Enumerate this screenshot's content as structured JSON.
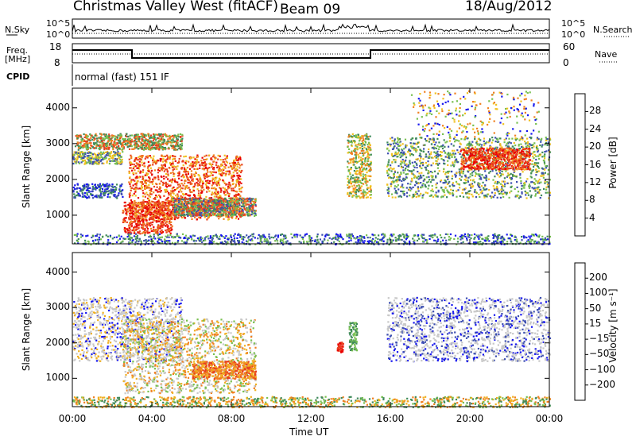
{
  "header": {
    "title": "Christmas Valley West (fitACF)",
    "beam": "Beam 09",
    "date": "18/Aug/2012"
  },
  "strips": {
    "nsky_label": "N.Sky",
    "nsearch_label": "N.Search",
    "freq_label_1": "Freq.",
    "freq_label_2": "[MHz]",
    "nave_label": "Nave",
    "cpid_label": "CPID",
    "cpid_text": "normal (fast) 151 IF",
    "noise_ticks": [
      "10^5",
      "10^0"
    ],
    "freq_ticks": [
      "18",
      "8"
    ],
    "nave_ticks": [
      "60",
      "0"
    ]
  },
  "xaxis": {
    "label": "Time UT",
    "ticks": [
      "00:00",
      "04:00",
      "08:00",
      "12:00",
      "16:00",
      "20:00",
      "00:00"
    ]
  },
  "chart_data": [
    {
      "type": "heatmap",
      "ylabel": "Slant Range [km]",
      "yticks": [
        1000,
        2000,
        3000,
        4000
      ],
      "ylim": [
        200,
        4550
      ],
      "xlim_hours": [
        0,
        24
      ],
      "colorbar": {
        "label": "Power [dB]",
        "ticks": [
          "4",
          "8",
          "12",
          "16",
          "20",
          "24",
          "28"
        ],
        "colors": [
          "#1515ee",
          "#3d4fb0",
          "#3f8a5a",
          "#78c050",
          "#f0c020",
          "#f08020",
          "#e84020",
          "#ea0000"
        ]
      }
    },
    {
      "type": "heatmap",
      "ylabel": "Slant Range [km]",
      "yticks": [
        1000,
        2000,
        3000,
        4000
      ],
      "ylim": [
        200,
        4550
      ],
      "xlim_hours": [
        0,
        24
      ],
      "colorbar": {
        "label": "Velocity [m s⁻¹]",
        "ticks": [
          "200",
          "100",
          "50",
          "15",
          "−15",
          "−50",
          "−100",
          "−200"
        ],
        "colors": [
          "#1515ee",
          "#3d4fb0",
          "#3f8a5a",
          "#78c050",
          "#c8c8c8",
          "#f0b020",
          "#f08020",
          "#e84020",
          "#ea0000"
        ]
      }
    }
  ]
}
